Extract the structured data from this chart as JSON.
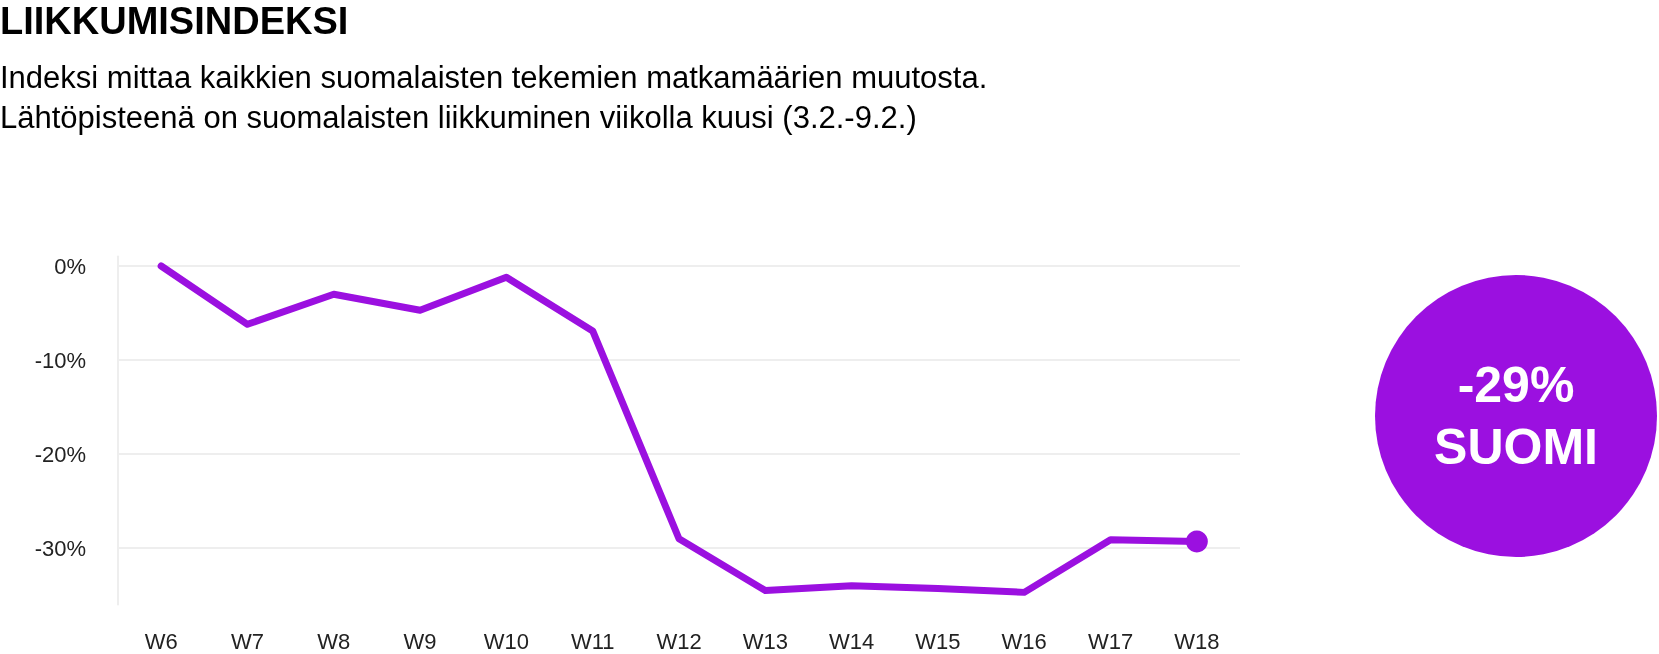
{
  "chart_data": {
    "type": "line",
    "title": "LIIKKUMISINDEKSI",
    "subtitle": "Indeksi mittaa kaikkien suomalaisten tekemien matkamäärien muutosta.\nLähtöpisteenä on suomalaisten liikkuminen viikolla kuusi (3.2.-9.2.)",
    "categories": [
      "W6",
      "W7",
      "W8",
      "W9",
      "W10",
      "W11",
      "W12",
      "W13",
      "W14",
      "W15",
      "W16",
      "W17",
      "W18"
    ],
    "series": [
      {
        "color": "#9b10e0",
        "values": [
          0,
          -6.2,
          -3.0,
          -4.7,
          -1.2,
          -6.9,
          -29.0,
          -34.5,
          -34.0,
          -34.3,
          -34.7,
          -29.1,
          -29.3
        ]
      }
    ],
    "ylim": [
      -36,
      1
    ],
    "yticks": [
      {
        "value": 0,
        "label": "0%"
      },
      {
        "value": -10,
        "label": "-10%"
      },
      {
        "value": -20,
        "label": "-20%"
      },
      {
        "value": -30,
        "label": "-30%"
      }
    ],
    "grid": "y",
    "line_style": "solid",
    "annotations": [
      "-29%",
      "SUOMI"
    ]
  }
}
